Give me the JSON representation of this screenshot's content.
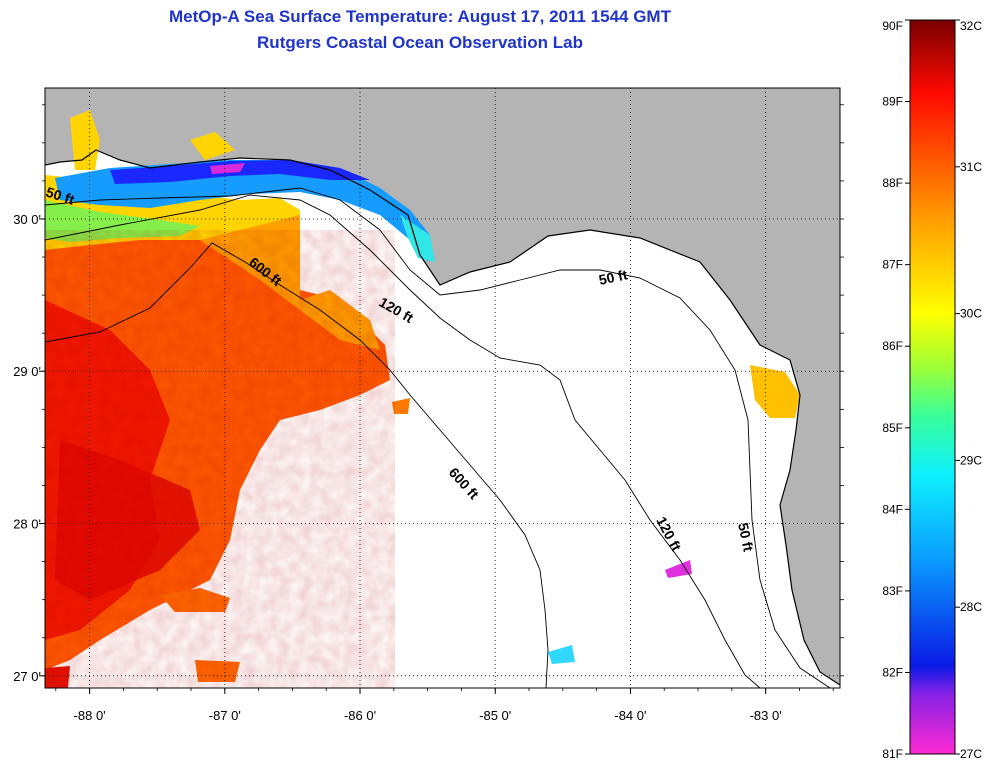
{
  "title": {
    "line1": "MetOp-A Sea Surface Temperature:  August 17, 2011 1544 GMT",
    "line2": "Rutgers Coastal Ocean Observation Lab"
  },
  "map": {
    "lon_range": [
      -88.33,
      -82.45
    ],
    "lat_range": [
      26.92,
      30.86
    ],
    "lon_ticks": [
      {
        "value": -88,
        "label": "-88 0'"
      },
      {
        "value": -87,
        "label": "-87 0'"
      },
      {
        "value": -86,
        "label": "-86 0'"
      },
      {
        "value": -85,
        "label": "-85 0'"
      },
      {
        "value": -84,
        "label": "-84 0'"
      },
      {
        "value": -83,
        "label": "-83 0'"
      }
    ],
    "lat_ticks": [
      {
        "value": 27,
        "label": "27 0'"
      },
      {
        "value": 28,
        "label": "28 0'"
      },
      {
        "value": 29,
        "label": "29 0'"
      },
      {
        "value": 30,
        "label": "30 0'"
      }
    ],
    "grid": "dotted",
    "land_color": "#b4b4b4",
    "no_data_color": "#ffffff",
    "contour_labels": {
      "w50": "50 ft",
      "w600": "600 ft",
      "c120": "120 ft",
      "e50": "50 ft",
      "s600": "600 ft",
      "s120": "120 ft",
      "s50": "50 ft"
    }
  },
  "colorbar": {
    "fahrenheit_labels": [
      "90F",
      "89F",
      "88F",
      "87F",
      "86F",
      "85F",
      "84F",
      "83F",
      "82F",
      "81F"
    ],
    "celsius_labels": [
      "32C",
      "31C",
      "30C",
      "29C",
      "28C",
      "27C"
    ],
    "range_f": [
      81,
      90
    ],
    "range_c": [
      27,
      32
    ],
    "colors": [
      "#ff2ad2",
      "#8a22e6",
      "#0a1ae6",
      "#0aa0ff",
      "#0ef0ff",
      "#38ff9a",
      "#a2ff32",
      "#ffff00",
      "#ffb400",
      "#ff6000",
      "#ff0a00",
      "#c80000",
      "#7a0000"
    ]
  }
}
